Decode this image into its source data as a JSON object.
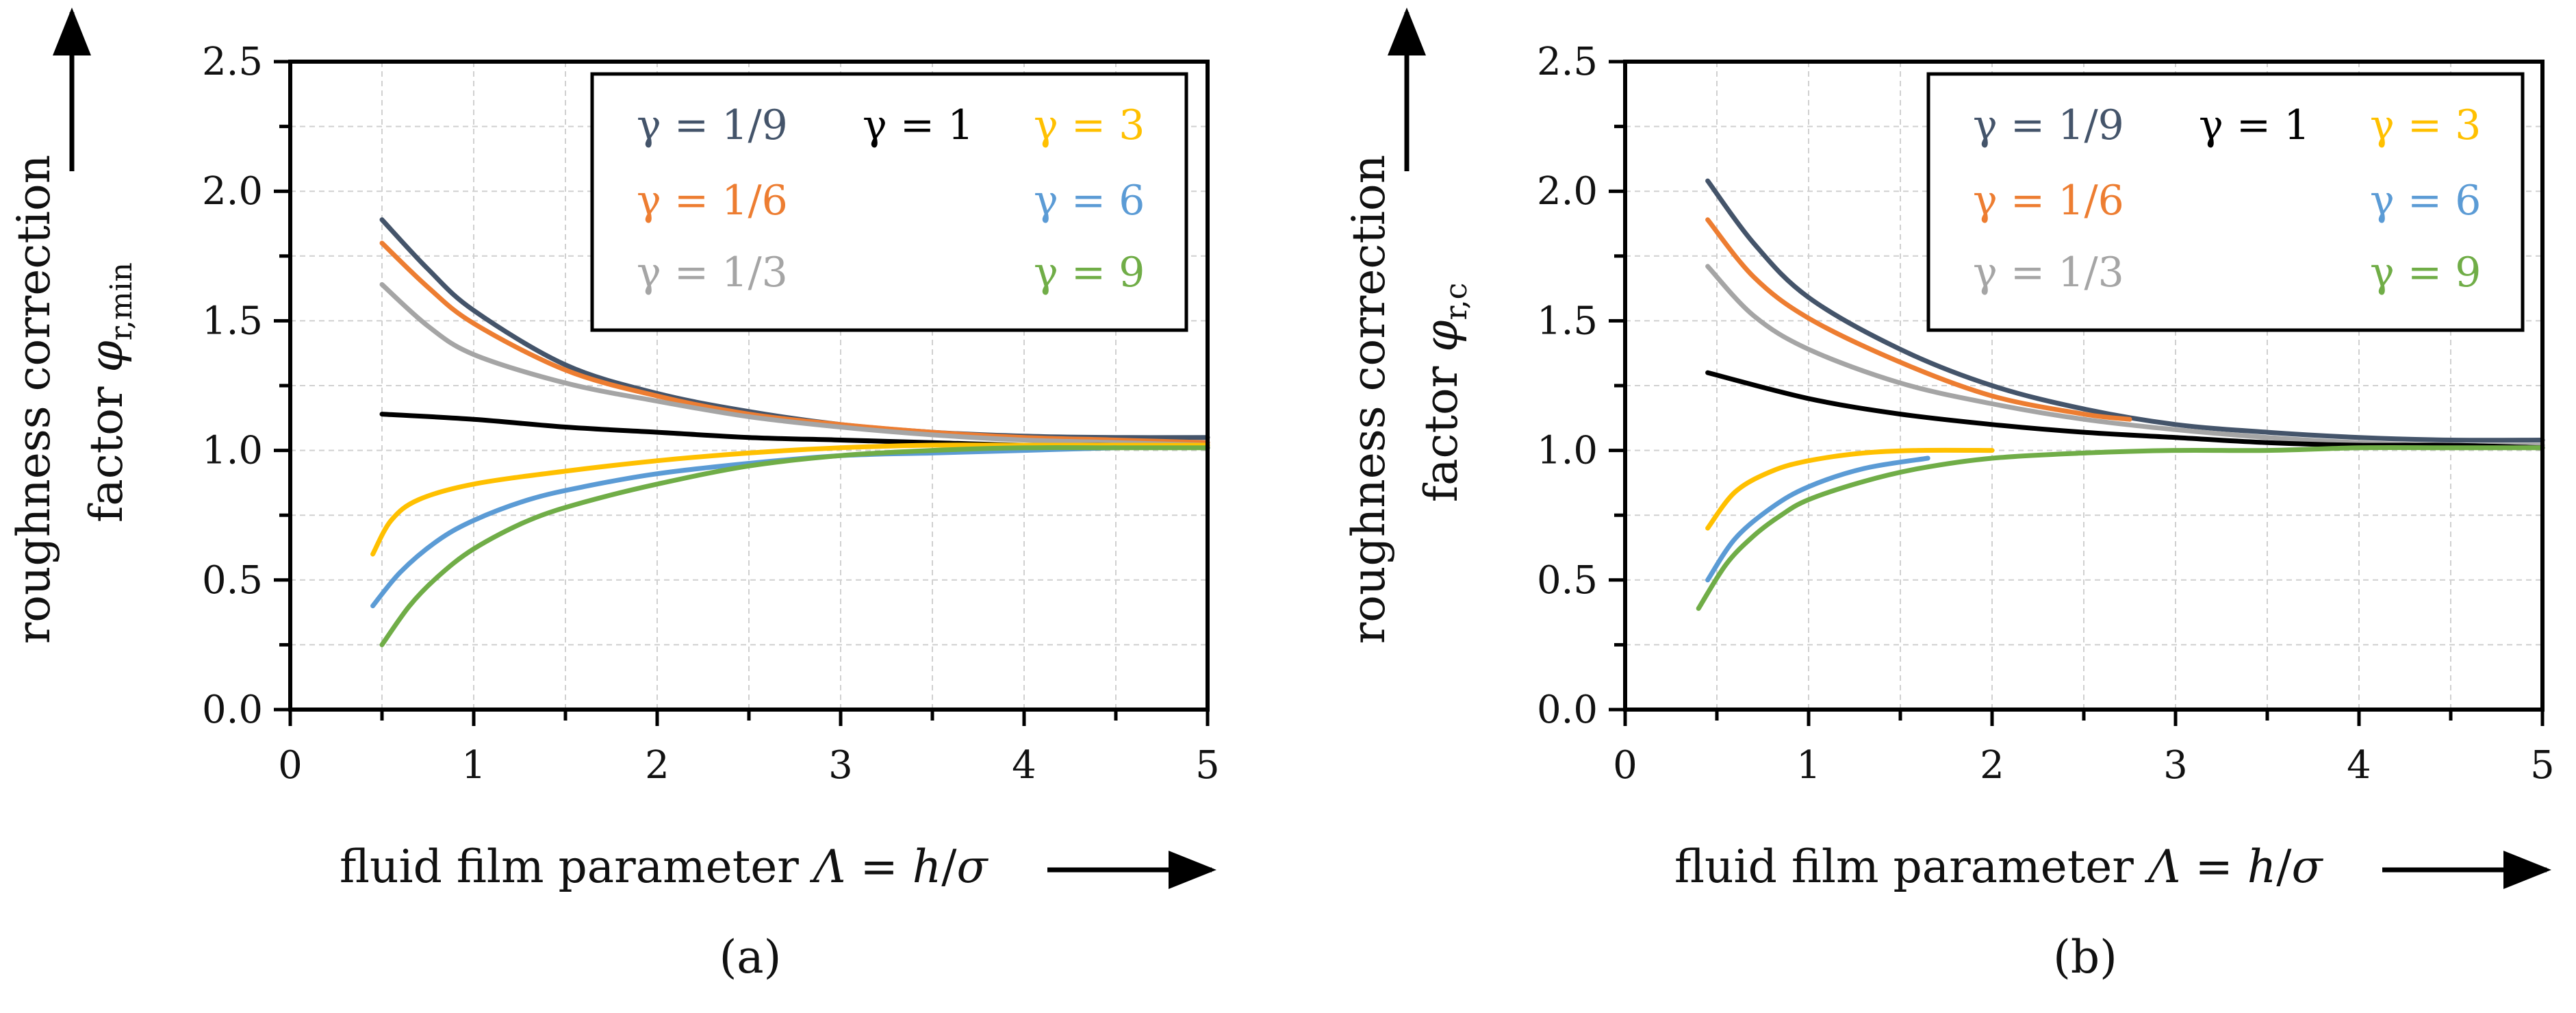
{
  "chart_data": [
    {
      "type": "line",
      "panel_label": "(a)",
      "title": "",
      "xlabel": "fluid film parameter Λ = h/σ",
      "xlabel_parts": {
        "prefix": "fluid film parameter ",
        "symbol": "Λ",
        "equals": " = ",
        "h": "h",
        "slash": "/",
        "sigma": "σ"
      },
      "ylabel": "roughness correction factor φr,min",
      "ylabel_parts": {
        "line1": "roughness correction",
        "factor": "factor ",
        "phi": "φ",
        "subscript": "r,min"
      },
      "xlim": [
        0,
        5
      ],
      "ylim": [
        0.0,
        2.5
      ],
      "x_ticks": [
        "0",
        "1",
        "2",
        "3",
        "4",
        "5"
      ],
      "y_ticks": [
        "0.0",
        "0.5",
        "1.0",
        "1.5",
        "2.0",
        "2.5"
      ],
      "grid": true,
      "legend_position": "top-right",
      "series": [
        {
          "name": "γ = 1/9",
          "color": "#44546a",
          "x": [
            0.5,
            0.75,
            1.0,
            1.5,
            2.0,
            2.5,
            3.0,
            3.5,
            4.0,
            4.5,
            5.0
          ],
          "y": [
            1.89,
            1.7,
            1.54,
            1.33,
            1.22,
            1.15,
            1.1,
            1.07,
            1.055,
            1.05,
            1.05
          ]
        },
        {
          "name": "γ = 1/6",
          "color": "#ed7d31",
          "x": [
            0.5,
            0.75,
            1.0,
            1.5,
            2.0,
            2.5,
            3.0,
            3.5,
            4.0,
            4.5,
            5.0
          ],
          "y": [
            1.8,
            1.63,
            1.49,
            1.31,
            1.21,
            1.14,
            1.1,
            1.07,
            1.05,
            1.04,
            1.03
          ]
        },
        {
          "name": "γ = 1/3",
          "color": "#a5a5a5",
          "x": [
            0.5,
            0.75,
            1.0,
            1.5,
            2.0,
            2.5,
            3.0,
            3.5,
            4.0,
            4.5,
            5.0
          ],
          "y": [
            1.64,
            1.48,
            1.37,
            1.26,
            1.19,
            1.13,
            1.09,
            1.06,
            1.04,
            1.03,
            1.02
          ]
        },
        {
          "name": "γ = 1",
          "color": "#000000",
          "x": [
            0.5,
            1.0,
            1.5,
            2.0,
            2.5,
            3.0,
            3.5,
            4.0,
            4.5,
            5.0
          ],
          "y": [
            1.14,
            1.12,
            1.09,
            1.07,
            1.05,
            1.04,
            1.03,
            1.02,
            1.02,
            1.01
          ]
        },
        {
          "name": "γ = 3",
          "color": "#ffc000",
          "x": [
            0.45,
            0.55,
            0.7,
            1.0,
            1.5,
            2.0,
            2.5,
            3.0,
            3.5,
            4.0,
            4.5,
            5.0
          ],
          "y": [
            0.6,
            0.73,
            0.81,
            0.87,
            0.92,
            0.96,
            0.99,
            1.01,
            1.02,
            1.02,
            1.02,
            1.02
          ]
        },
        {
          "name": "γ = 6",
          "color": "#5b9bd5",
          "x": [
            0.45,
            0.6,
            0.8,
            1.0,
            1.3,
            1.6,
            2.0,
            2.5,
            3.0,
            3.5,
            4.0,
            4.5
          ],
          "y": [
            0.4,
            0.53,
            0.65,
            0.73,
            0.81,
            0.86,
            0.91,
            0.95,
            0.98,
            0.99,
            1.0,
            1.01
          ]
        },
        {
          "name": "γ = 9",
          "color": "#70ad47",
          "x": [
            0.5,
            0.65,
            0.8,
            1.0,
            1.3,
            1.6,
            2.0,
            2.5,
            3.0,
            3.5,
            4.0,
            4.5,
            5.0
          ],
          "y": [
            0.25,
            0.4,
            0.51,
            0.62,
            0.73,
            0.8,
            0.87,
            0.94,
            0.98,
            1.0,
            1.01,
            1.01,
            1.01
          ]
        }
      ]
    },
    {
      "type": "line",
      "panel_label": "(b)",
      "title": "",
      "xlabel": "fluid film parameter Λ = h/σ",
      "xlabel_parts": {
        "prefix": "fluid film parameter ",
        "symbol": "Λ",
        "equals": " = ",
        "h": "h",
        "slash": "/",
        "sigma": "σ"
      },
      "ylabel": "roughness correction factor φr,c",
      "ylabel_parts": {
        "line1": "roughness correction",
        "factor": "factor ",
        "phi": "φ",
        "subscript": "r,c"
      },
      "xlim": [
        0,
        5
      ],
      "ylim": [
        0.0,
        2.5
      ],
      "x_ticks": [
        "0",
        "1",
        "2",
        "3",
        "4",
        "5"
      ],
      "y_ticks": [
        "0.0",
        "0.5",
        "1.0",
        "1.5",
        "2.0",
        "2.5"
      ],
      "grid": true,
      "legend_position": "top-right",
      "series": [
        {
          "name": "γ = 1/9",
          "color": "#44546a",
          "x": [
            0.45,
            0.7,
            1.0,
            1.5,
            2.0,
            2.5,
            3.0,
            3.5,
            4.0,
            4.5,
            5.0
          ],
          "y": [
            2.04,
            1.8,
            1.59,
            1.39,
            1.25,
            1.16,
            1.1,
            1.07,
            1.05,
            1.04,
            1.04
          ]
        },
        {
          "name": "γ = 1/6",
          "color": "#ed7d31",
          "x": [
            0.45,
            0.7,
            1.0,
            1.5,
            2.0,
            2.5,
            2.75
          ],
          "y": [
            1.89,
            1.67,
            1.51,
            1.34,
            1.21,
            1.14,
            1.12
          ]
        },
        {
          "name": "γ = 1/3",
          "color": "#a5a5a5",
          "x": [
            0.45,
            0.7,
            1.0,
            1.5,
            2.0,
            2.5,
            3.0,
            3.5,
            4.0,
            4.5,
            5.0
          ],
          "y": [
            1.71,
            1.52,
            1.39,
            1.26,
            1.18,
            1.12,
            1.08,
            1.05,
            1.03,
            1.02,
            1.02
          ]
        },
        {
          "name": "γ = 1",
          "color": "#000000",
          "x": [
            0.45,
            1.0,
            1.5,
            2.0,
            2.5,
            3.0,
            3.5,
            4.0,
            4.5,
            5.0
          ],
          "y": [
            1.3,
            1.2,
            1.14,
            1.1,
            1.07,
            1.05,
            1.03,
            1.02,
            1.02,
            1.01
          ]
        },
        {
          "name": "γ = 3",
          "color": "#ffc000",
          "x": [
            0.45,
            0.6,
            0.8,
            1.0,
            1.3,
            1.6,
            2.0
          ],
          "y": [
            0.7,
            0.84,
            0.92,
            0.96,
            0.99,
            1.0,
            1.0
          ]
        },
        {
          "name": "γ = 6",
          "color": "#5b9bd5",
          "x": [
            0.45,
            0.6,
            0.8,
            1.0,
            1.3,
            1.65
          ],
          "y": [
            0.5,
            0.66,
            0.78,
            0.86,
            0.93,
            0.97
          ]
        },
        {
          "name": "γ = 9",
          "color": "#70ad47",
          "x": [
            0.4,
            0.55,
            0.7,
            0.85,
            1.0,
            1.3,
            1.6,
            2.0,
            2.5,
            3.0,
            3.5,
            4.0,
            4.5,
            5.0
          ],
          "y": [
            0.39,
            0.56,
            0.67,
            0.75,
            0.81,
            0.88,
            0.93,
            0.97,
            0.99,
            1.0,
            1.0,
            1.01,
            1.01,
            1.01
          ]
        }
      ]
    }
  ]
}
